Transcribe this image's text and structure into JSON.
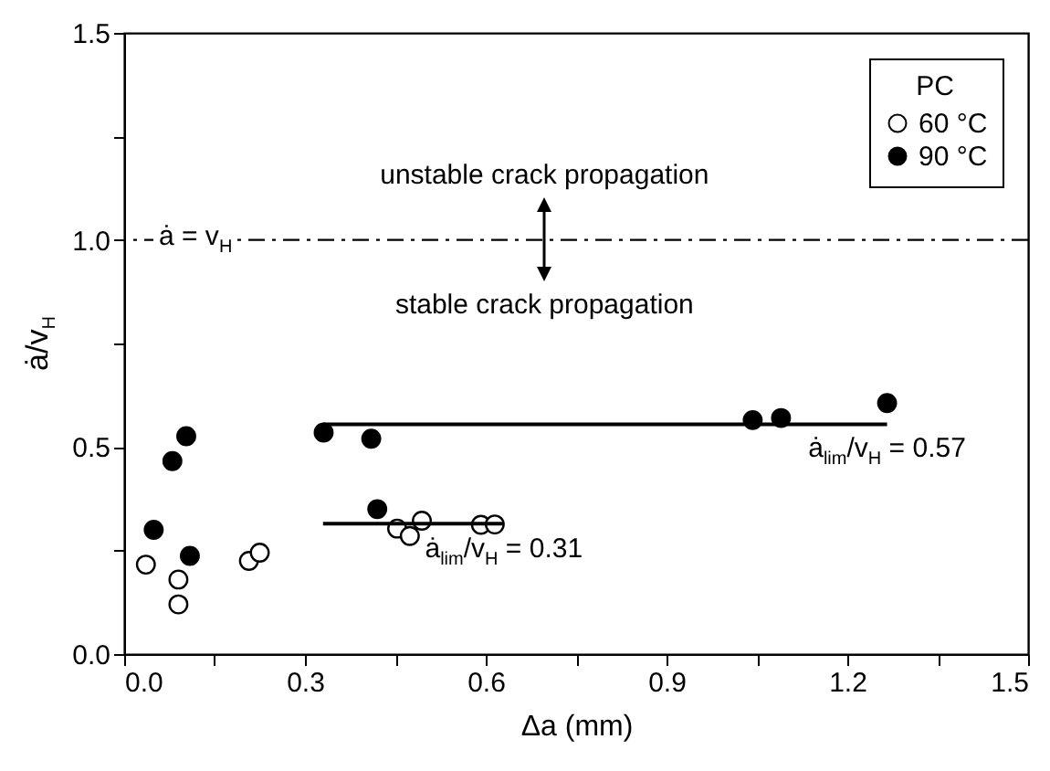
{
  "chart_data": {
    "type": "scatter",
    "xlabel": "Δa (mm)",
    "ylabel": "ȧ/v$_{H}$",
    "legend_title": "PC",
    "legend": "top right",
    "grid": false,
    "marker": "circle",
    "xlim": [
      0,
      1.5
    ],
    "ylim": [
      0,
      1.5
    ],
    "xticks": [
      {
        "value": 0,
        "label": "0.0"
      },
      {
        "value": 0.15,
        "label": null
      },
      {
        "value": 0.3,
        "label": "0.3"
      },
      {
        "value": 0.45,
        "label": null
      },
      {
        "value": 0.6,
        "label": "0.6"
      },
      {
        "value": 0.75,
        "label": null
      },
      {
        "value": 0.9,
        "label": "0.9"
      },
      {
        "value": 1.05,
        "label": null
      },
      {
        "value": 1.2,
        "label": "1.2"
      },
      {
        "value": 1.35,
        "label": null
      },
      {
        "value": 1.5,
        "label": "1.5"
      }
    ],
    "yticks": [
      {
        "value": 0,
        "label": "0.0"
      },
      {
        "value": 0.25,
        "label": null
      },
      {
        "value": 0.5,
        "label": "0.5"
      },
      {
        "value": 0.75,
        "label": null
      },
      {
        "value": 1,
        "label": "1.0"
      },
      {
        "value": 1.25,
        "label": null
      },
      {
        "value": 1.5,
        "label": "1.5"
      }
    ],
    "series": [
      {
        "name": "60 °C",
        "color": "#ffffff",
        "x": [
          0.036,
          0.09,
          0.09,
          0.207,
          0.225,
          0.453,
          0.474,
          0.494,
          0.592,
          0.615
        ],
        "values": [
          0.216,
          0.18,
          0.12,
          0.225,
          0.245,
          0.303,
          0.285,
          0.322,
          0.312,
          0.313
        ]
      },
      {
        "name": "90 °C",
        "color": "#000000",
        "x": [
          0.049,
          0.08,
          0.103,
          0.109,
          0.331,
          0.41,
          0.42,
          1.043,
          1.09,
          1.266
        ],
        "values": [
          0.3,
          0.466,
          0.526,
          0.237,
          0.535,
          0.52,
          0.35,
          0.565,
          0.57,
          0.606
        ]
      },
      {
        "type": "line",
        "name": "ȧ$_{lim}$/v$_{H}$ = 0.31",
        "color": "#000000",
        "marker": "none",
        "x": [
          0.33,
          0.63
        ],
        "values": [
          0.315,
          0.315
        ]
      },
      {
        "type": "line",
        "name": "ȧ$_{lim}$/v$_{H}$ = 0.57",
        "color": "#000000",
        "marker": "none",
        "x": [
          0.33,
          1.266
        ],
        "values": [
          0.555,
          0.555
        ]
      }
    ],
    "ref_lines": [
      {
        "axis": "y",
        "value": 1,
        "label": "ȧ = v$_{H}$",
        "color": "#000000",
        "line_style": "dashed"
      }
    ],
    "annotations": [
      "unstable crack propagation",
      "stable crack propagation"
    ]
  }
}
